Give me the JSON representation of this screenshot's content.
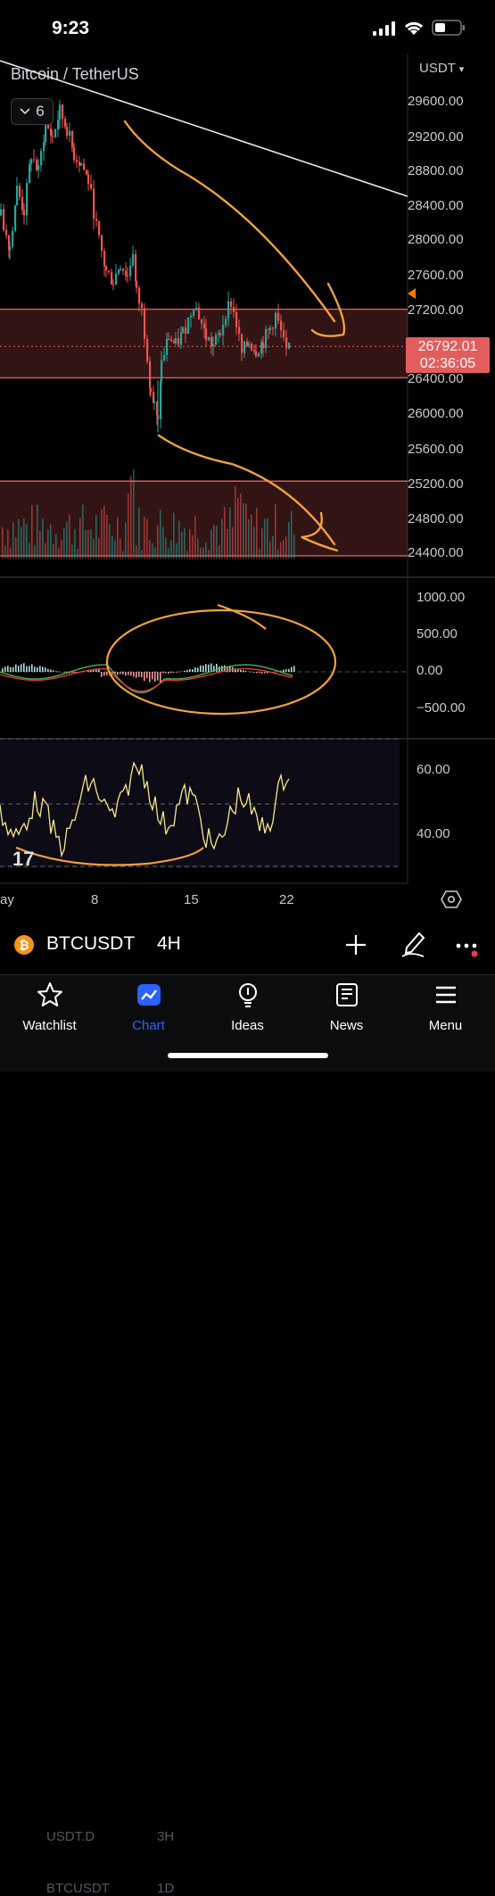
{
  "status_bar": {
    "time": "9:23"
  },
  "chart": {
    "symbol_title": "Bitcoin / TetherUS",
    "interval_badge": "6",
    "currency": "USDT",
    "last_price": "26792.01",
    "countdown": "02:36:05",
    "price_axis": [
      "29600.00",
      "29200.00",
      "28800.00",
      "28400.00",
      "28000.00",
      "27600.00",
      "27200.00",
      "26400.00",
      "26000.00",
      "25600.00",
      "25200.00",
      "24800.00",
      "24400.00"
    ],
    "macd_axis": [
      "1000.00",
      "500.00",
      "0.00",
      "−500.00"
    ],
    "rsi_axis": [
      "60.00",
      "40.00"
    ],
    "x_axis": [
      "ay",
      "8",
      "15",
      "22"
    ],
    "colors": {
      "up": "#26a69a",
      "down": "#ef5350",
      "zone": "#e35d5d",
      "drawing": "#f2a23a",
      "rsi": "#f5e98a"
    }
  },
  "chart_data": {
    "type": "candlestick",
    "title": "Bitcoin / TetherUS",
    "ylim": [
      24200,
      29900
    ],
    "zones": [
      [
        26430,
        27220
      ],
      [
        24380,
        25240
      ]
    ],
    "last": 26792.01
  },
  "toolbar": {
    "symbol": "BTCUSDT",
    "interval": "4H",
    "ghost_top_left": "USDT.D",
    "ghost_top_right": "3H",
    "ghost_bottom_left": "BTCUSDT",
    "ghost_bottom_right": "1D"
  },
  "tabs": [
    {
      "label": "Watchlist",
      "icon": "star-icon"
    },
    {
      "label": "Chart",
      "icon": "chart-icon"
    },
    {
      "label": "Ideas",
      "icon": "lightbulb-icon"
    },
    {
      "label": "News",
      "icon": "newspaper-icon"
    },
    {
      "label": "Menu",
      "icon": "menu-icon"
    }
  ]
}
